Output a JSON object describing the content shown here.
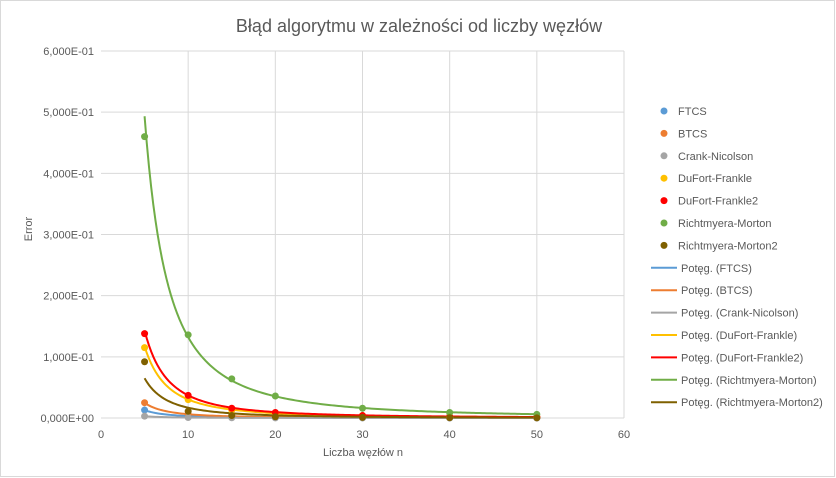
{
  "chart_data": {
    "type": "scatter",
    "title": "Błąd algorytmu w zależności od liczby węzłów",
    "xlabel": "Liczba węzłów  n",
    "ylabel": "Error",
    "xlim": [
      0,
      60
    ],
    "ylim": [
      0,
      0.6
    ],
    "xticks": [
      0,
      10,
      20,
      30,
      40,
      50,
      60
    ],
    "xtick_labels": [
      "0",
      "10",
      "20",
      "30",
      "40",
      "50",
      "60"
    ],
    "yticks": [
      0,
      0.1,
      0.2,
      0.3,
      0.4,
      0.5,
      0.6
    ],
    "ytick_labels": [
      "0,000E+00",
      "1,000E-01",
      "2,000E-01",
      "3,000E-01",
      "4,000E-01",
      "5,000E-01",
      "6,000E-01"
    ],
    "grid": true,
    "legend_position": "right",
    "series": [
      {
        "name": "FTCS",
        "color": "#5b9bd5",
        "x": [
          5,
          10,
          15,
          20,
          30,
          40,
          50
        ],
        "y": [
          0.013,
          0.003,
          0.0015,
          0.0008,
          0.0004,
          0.0002,
          0.0001
        ]
      },
      {
        "name": "BTCS",
        "color": "#ed7d31",
        "x": [
          5,
          10,
          15,
          20,
          30,
          40,
          50
        ],
        "y": [
          0.025,
          0.006,
          0.003,
          0.0015,
          0.0007,
          0.0004,
          0.0003
        ]
      },
      {
        "name": "Crank-Nicolson",
        "color": "#a5a5a5",
        "x": [
          5,
          10,
          15,
          20,
          30,
          40,
          50
        ],
        "y": [
          0.003,
          0.0008,
          0.0004,
          0.0002,
          0.0001,
          5e-05,
          3e-05
        ]
      },
      {
        "name": "DuFort-Frankle",
        "color": "#ffc000",
        "x": [
          5,
          10,
          15,
          20,
          30,
          40,
          50
        ],
        "y": [
          0.115,
          0.03,
          0.013,
          0.008,
          0.004,
          0.002,
          0.0013
        ]
      },
      {
        "name": "DuFort-Frankle2",
        "color": "#ff0000",
        "x": [
          5,
          10,
          15,
          20,
          30,
          40,
          50
        ],
        "y": [
          0.138,
          0.037,
          0.016,
          0.009,
          0.004,
          0.0025,
          0.0015
        ]
      },
      {
        "name": "Richtmyera-Morton",
        "color": "#70ad47",
        "x": [
          5,
          10,
          15,
          20,
          30,
          40,
          50
        ],
        "y": [
          0.46,
          0.136,
          0.064,
          0.036,
          0.016,
          0.009,
          0.006
        ]
      },
      {
        "name": "Richtmyera-Morton2",
        "color": "#7f6000",
        "x": [
          5,
          10,
          15,
          20,
          30,
          40,
          50
        ],
        "y": [
          0.092,
          0.011,
          0.004,
          0.002,
          0.001,
          0.0005,
          0.0003
        ]
      }
    ],
    "trendlines": [
      {
        "name": "Potęg. (FTCS)",
        "color": "#5b9bd5",
        "a": 0.32,
        "b": -2.0
      },
      {
        "name": "Potęg. (BTCS)",
        "color": "#ed7d31",
        "a": 0.62,
        "b": -2.0
      },
      {
        "name": "Potęg. (Crank-Nicolson)",
        "color": "#a5a5a5",
        "a": 0.075,
        "b": -2.0
      },
      {
        "name": "Potęg. (DuFort-Frankle)",
        "color": "#ffc000",
        "a": 2.7,
        "b": -1.95
      },
      {
        "name": "Potęg. (DuFort-Frankle2)",
        "color": "#ff0000",
        "a": 3.3,
        "b": -1.95
      },
      {
        "name": "Potęg. (Richtmyera-Morton)",
        "color": "#70ad47",
        "a": 10.5,
        "b": -1.9
      },
      {
        "name": "Potęg. (Richtmyera-Morton2)",
        "color": "#7f6000",
        "a": 1.5,
        "b": -1.95
      }
    ]
  }
}
